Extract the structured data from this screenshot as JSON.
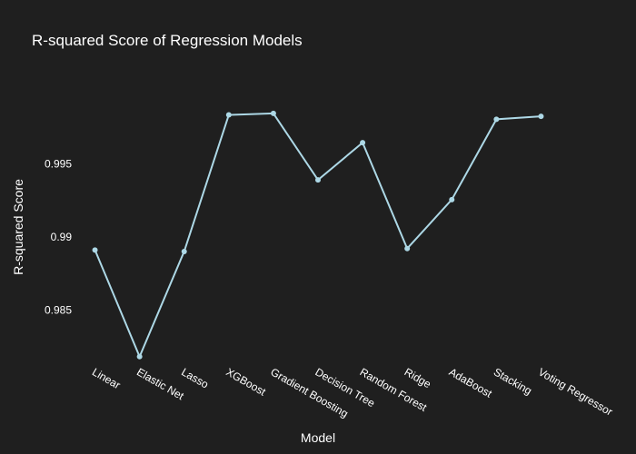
{
  "chart_data": {
    "type": "line",
    "title": "R-squared Score of Regression Models",
    "xlabel": "Model",
    "ylabel": "R-squared Score",
    "categories": [
      "Linear",
      "Elastic Net",
      "Lasso",
      "XGBoost",
      "Gradient Boosting",
      "Decision Tree",
      "Random Forest",
      "Ridge",
      "AdaBoost",
      "Stacking",
      "Voting Regressor"
    ],
    "series": [
      {
        "values": [
          0.9891,
          0.9818,
          0.989,
          0.99835,
          0.99845,
          0.9939,
          0.99645,
          0.9892,
          0.99255,
          0.99805,
          0.99825
        ]
      }
    ],
    "yticks": [
      0.985,
      0.99,
      0.995
    ],
    "ytick_labels": [
      "0.985",
      "0.99",
      "0.995"
    ],
    "ylim": [
      0.98135,
      1.0
    ],
    "grid": false,
    "colors": {
      "line": "#add8e6",
      "background": "#1f1f1f",
      "text": "#ffffff"
    }
  }
}
